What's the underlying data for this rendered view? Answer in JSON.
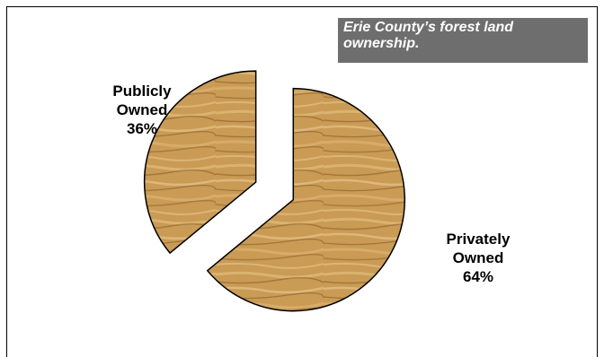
{
  "chart_data": {
    "type": "pie",
    "title": [
      "Erie County’s forest land",
      "ownership."
    ],
    "slices": [
      {
        "label": [
          "Privately",
          "Owned",
          "64%"
        ],
        "name": "Privately Owned",
        "value": 64
      },
      {
        "label": [
          "Publicly",
          "Owned",
          "36%"
        ],
        "name": "Publicly Owned",
        "value": 36
      }
    ],
    "exploded": true,
    "fill_texture": "wood-grain",
    "colors": {
      "wood_base": "#c99b55",
      "wood_light": "#e0b978",
      "wood_dark": "#8a5f2a",
      "title_bg": "#6e6e6e",
      "title_text": "#ffffff",
      "outline": "#000000"
    }
  }
}
